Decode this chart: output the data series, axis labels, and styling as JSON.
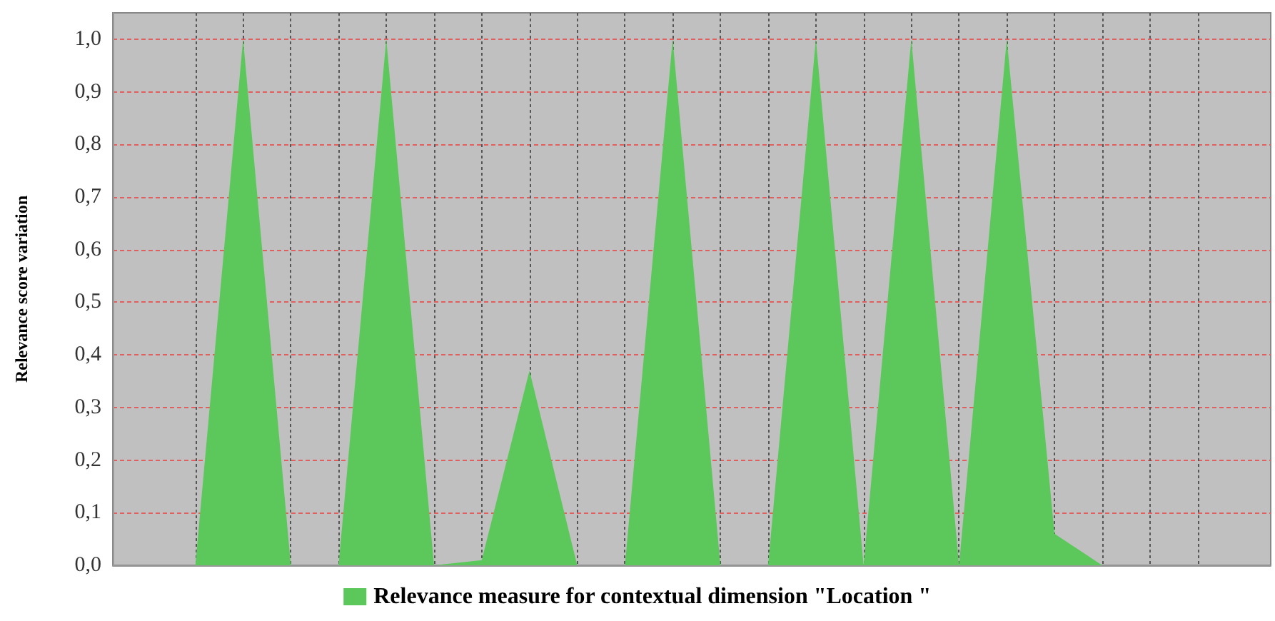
{
  "chart_data": {
    "type": "area",
    "ylabel": "Relevance score variation",
    "categories": [
      null,
      null,
      null,
      null,
      null,
      null,
      null,
      null,
      null,
      null,
      null,
      null,
      null,
      null,
      null,
      null,
      null,
      null,
      null,
      null,
      null,
      null
    ],
    "series": [
      {
        "name": "Relevance measure for contextual dimension \"Location \"",
        "color": "#5cc85c",
        "values": [
          0,
          1,
          0,
          0,
          1,
          0,
          0.01,
          0.37,
          0,
          0,
          1,
          0,
          0,
          1,
          0,
          1,
          0,
          1,
          0.06,
          0,
          0,
          0
        ]
      }
    ],
    "ylim": [
      0,
      1.05
    ],
    "yticks": [
      {
        "value": 0,
        "label": "0,0"
      },
      {
        "value": 0.1,
        "label": "0,1"
      },
      {
        "value": 0.2,
        "label": "0,2"
      },
      {
        "value": 0.3,
        "label": "0,3"
      },
      {
        "value": 0.4,
        "label": "0,4"
      },
      {
        "value": 0.5,
        "label": "0,5"
      },
      {
        "value": 0.6,
        "label": "0,6"
      },
      {
        "value": 0.7,
        "label": "0,7"
      },
      {
        "value": 0.8,
        "label": "0,8"
      },
      {
        "value": 0.9,
        "label": "0,9"
      },
      {
        "value": 1,
        "label": "1,0"
      }
    ],
    "grid": true,
    "legend": "bottom",
    "marker": "none"
  }
}
